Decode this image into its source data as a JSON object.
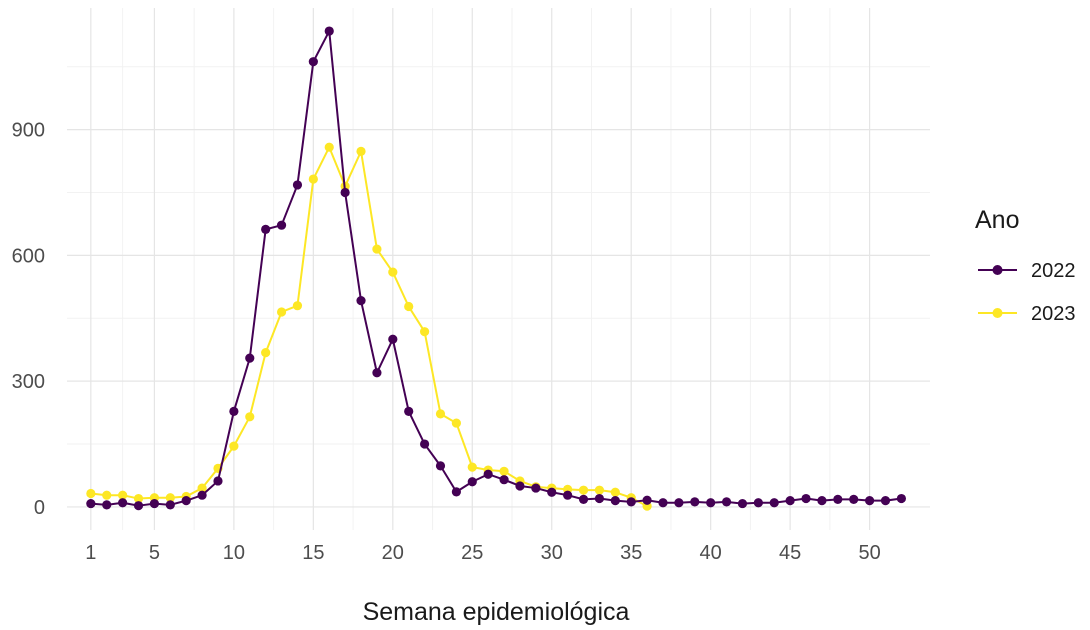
{
  "chart_data": {
    "type": "line",
    "title": "",
    "xlabel": "Semana epidemiológica",
    "ylabel": "",
    "xlim": [
      -0.5,
      53.8
    ],
    "ylim": [
      -55,
      1190
    ],
    "x_ticks": [
      1,
      5,
      10,
      15,
      20,
      25,
      30,
      35,
      40,
      45,
      50
    ],
    "y_ticks": [
      0,
      300,
      600,
      900
    ],
    "grid": true,
    "legend": {
      "title": "Ano",
      "placement": "right"
    },
    "series": [
      {
        "name": "2022",
        "color": "#440154",
        "x": [
          1,
          2,
          3,
          4,
          5,
          6,
          7,
          8,
          9,
          10,
          11,
          12,
          13,
          14,
          15,
          16,
          17,
          18,
          19,
          20,
          21,
          22,
          23,
          24,
          25,
          26,
          27,
          28,
          29,
          30,
          31,
          32,
          33,
          34,
          35,
          36,
          37,
          38,
          39,
          40,
          41,
          42,
          43,
          44,
          45,
          46,
          47,
          48,
          49,
          50,
          51,
          52
        ],
        "y": [
          8,
          5,
          10,
          3,
          8,
          5,
          15,
          28,
          62,
          228,
          355,
          662,
          672,
          768,
          1062,
          1135,
          750,
          492,
          320,
          400,
          228,
          150,
          98,
          36,
          60,
          78,
          65,
          50,
          45,
          35,
          28,
          18,
          20,
          15,
          12,
          16,
          10,
          10,
          12,
          10,
          12,
          8,
          10,
          10,
          15,
          20,
          15,
          18,
          18,
          15,
          15,
          20
        ]
      },
      {
        "name": "2023",
        "color": "#fde725",
        "x": [
          1,
          2,
          3,
          4,
          5,
          6,
          7,
          8,
          9,
          10,
          11,
          12,
          13,
          14,
          15,
          16,
          17,
          18,
          19,
          20,
          21,
          22,
          23,
          24,
          25,
          26,
          27,
          28,
          29,
          30,
          31,
          32,
          33,
          34,
          35,
          36
        ],
        "y": [
          32,
          28,
          28,
          20,
          22,
          22,
          25,
          45,
          92,
          145,
          215,
          368,
          465,
          480,
          782,
          858,
          765,
          848,
          615,
          560,
          478,
          418,
          222,
          200,
          95,
          88,
          85,
          62,
          48,
          45,
          42,
          40,
          40,
          35,
          22,
          2
        ]
      }
    ]
  }
}
